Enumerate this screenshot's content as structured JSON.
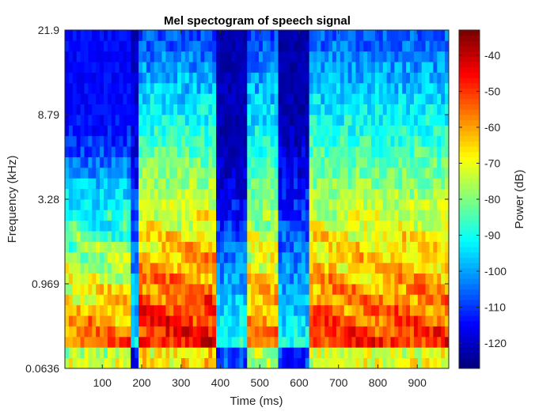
{
  "chart_data": {
    "type": "heatmap",
    "title": "Mel spectogram of speech signal",
    "xlabel": "Time (ms)",
    "ylabel": "Frequency (kHz)",
    "colorbar_label": "Power (dB)",
    "colormap": "jet",
    "xlim": [
      5,
      980
    ],
    "xticks": [
      100,
      200,
      300,
      400,
      500,
      600,
      700,
      800,
      900
    ],
    "ytick_labels": [
      "21.9",
      "8.79",
      "3.28",
      "0.969",
      "0.0636"
    ],
    "clim": [
      -127,
      -33
    ],
    "colorbar_ticks": [
      -40,
      -50,
      -60,
      -70,
      -80,
      -90,
      -100,
      -110,
      -120
    ],
    "grid": false,
    "mel_bands": 32,
    "time_frames": 99,
    "regions": [
      {
        "start_ms": 5,
        "end_ms": 175,
        "low_band_db": -48,
        "decay_db_per_band": 3.0,
        "floor_db": -118,
        "description_level": "voiced"
      },
      {
        "start_ms": 175,
        "end_ms": 190,
        "low_band_db": -92,
        "decay_db_per_band": 1.2,
        "floor_db": -124
      },
      {
        "start_ms": 190,
        "end_ms": 390,
        "low_band_db": -40,
        "decay_db_per_band": 2.2,
        "floor_db": -115
      },
      {
        "start_ms": 390,
        "end_ms": 470,
        "low_band_db": -85,
        "decay_db_per_band": 2.0,
        "floor_db": -125
      },
      {
        "start_ms": 470,
        "end_ms": 545,
        "low_band_db": -52,
        "decay_db_per_band": 1.8,
        "floor_db": -120
      },
      {
        "start_ms": 545,
        "end_ms": 630,
        "low_band_db": -88,
        "decay_db_per_band": 1.6,
        "floor_db": -126
      },
      {
        "start_ms": 630,
        "end_ms": 980,
        "low_band_db": -45,
        "decay_db_per_band": 2.0,
        "floor_db": -112
      }
    ]
  },
  "colors": {
    "axis": "#262626",
    "background": "#ffffff"
  }
}
